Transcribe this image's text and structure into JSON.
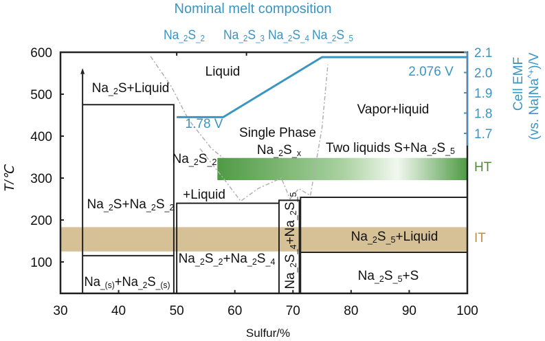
{
  "chart_data": {
    "type": "phase-diagram",
    "top_title": "Nominal melt composition",
    "top_labels": [
      "Na_2S_2",
      "Na_2S_3",
      "Na_2S_4",
      "Na_2S_5"
    ],
    "xlabel": "Sulfur/%",
    "ylabel": "T/℃",
    "ylabel_right": "Cell EMF (vs. Na|Na^+)/V",
    "ylabel_right_line1": "Cell EMF",
    "ylabel_right_line2": "(vs. Na|Na^+)/V",
    "xlim": [
      30,
      100
    ],
    "ylim": [
      25,
      600
    ],
    "ylim_right": [
      1.64,
      2.1
    ],
    "x_ticks": [
      "30",
      "40",
      "50",
      "60",
      "70",
      "80",
      "90",
      "100"
    ],
    "y_ticks": [
      "100",
      "200",
      "300",
      "400",
      "500",
      "600"
    ],
    "y_right_ticks": [
      "1.7",
      "1.8",
      "1.9",
      "2.0",
      "2.1"
    ],
    "emf_series": {
      "x": [
        50,
        58,
        75,
        100
      ],
      "y": [
        1.78,
        1.78,
        2.076,
        2.076
      ],
      "color": "#3a95c2"
    },
    "emf_labels": [
      "1.78 V",
      "2.076 V"
    ],
    "bands": [
      {
        "name": "HT",
        "x": [
          57,
          100
        ],
        "y": [
          295,
          348
        ],
        "color": "#4f9a45"
      },
      {
        "name": "IT",
        "x": [
          30,
          100
        ],
        "y": [
          125,
          183
        ],
        "color": "#d6c096"
      }
    ],
    "regions": [
      {
        "label": "Liquid"
      },
      {
        "label": "Na_2S+Liquid"
      },
      {
        "label": "Vapor+liquid"
      },
      {
        "label": "Single Phase"
      },
      {
        "label": "Na_2S_x"
      },
      {
        "label": "Two liquids S+Na_2S_5"
      },
      {
        "label": "Na_2S_2"
      },
      {
        "label": "+Liquid"
      },
      {
        "label": "Na_2S+Na_2S_2"
      },
      {
        "label": "Na_2S_2+Na_2S_4"
      },
      {
        "label": "Na_2S_4+Na_2S_5"
      },
      {
        "label": "Na_2S_5+Liquid"
      },
      {
        "label": "Na_2S_5+S"
      },
      {
        "label": "Na_(s)+Na_2S_(s)"
      }
    ],
    "phase_boundaries": {
      "na2s_liquid_top": 475,
      "na_melting": 115,
      "na2s2_na2s4_top": 240,
      "na2s4_na2s5_top": 247,
      "na2s5_top": 254,
      "na2s5_s": 123
    }
  }
}
